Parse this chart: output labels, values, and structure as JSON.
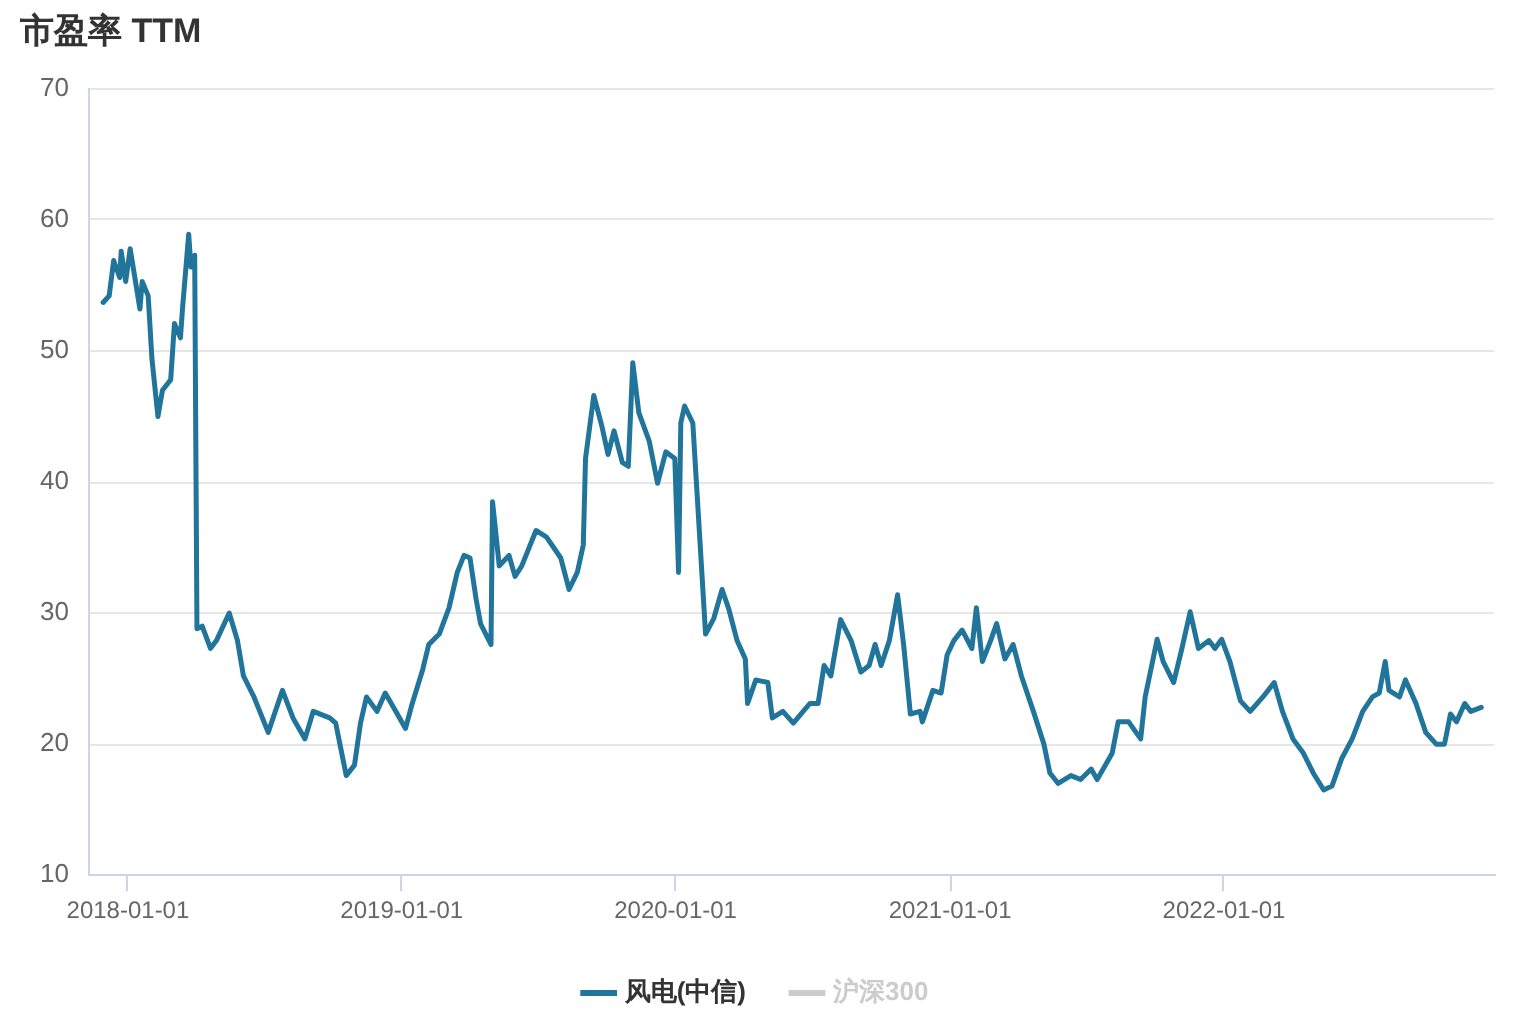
{
  "chart_data": {
    "type": "line",
    "title": "市盈率 TTM",
    "x": [
      "2017-11-29",
      "2017-12-07",
      "2017-12-13",
      "2017-12-21",
      "2017-12-23",
      "2017-12-29",
      "2018-01-04",
      "2018-01-17",
      "2018-01-20",
      "2018-01-28",
      "2018-02-02",
      "2018-02-10",
      "2018-02-16",
      "2018-02-27",
      "2018-03-04",
      "2018-03-12",
      "2018-03-15",
      "2018-03-23",
      "2018-03-26",
      "2018-03-31",
      "2018-04-03",
      "2018-04-10",
      "2018-04-21",
      "2018-04-29",
      "2018-05-16",
      "2018-05-27",
      "2018-06-04",
      "2018-06-18",
      "2018-07-07",
      "2018-07-26",
      "2018-08-09",
      "2018-08-25",
      "2018-09-05",
      "2018-09-27",
      "2018-10-05",
      "2018-10-19",
      "2018-10-30",
      "2018-11-07",
      "2018-11-15",
      "2018-11-29",
      "2018-12-10",
      "2018-12-24",
      "2019-01-06",
      "2019-01-15",
      "2019-01-29",
      "2019-02-06",
      "2019-02-20",
      "2019-03-05",
      "2019-03-16",
      "2019-03-25",
      "2019-04-02",
      "2019-04-10",
      "2019-04-16",
      "2019-04-30",
      "2019-05-02",
      "2019-05-11",
      "2019-05-24",
      "2019-06-01",
      "2019-06-10",
      "2019-06-29",
      "2019-07-13",
      "2019-08-01",
      "2019-08-12",
      "2019-08-23",
      "2019-08-31",
      "2019-09-03",
      "2019-09-14",
      "2019-09-25",
      "2019-10-03",
      "2019-10-11",
      "2019-10-22",
      "2019-10-30",
      "2019-11-05",
      "2019-11-13",
      "2019-11-27",
      "2019-12-08",
      "2019-12-19",
      "2019-12-31",
      "2020-01-05",
      "2020-01-08",
      "2020-01-13",
      "2020-01-24",
      "2020-02-10",
      "2020-02-21",
      "2020-03-03",
      "2020-03-12",
      "2020-03-23",
      "2020-04-03",
      "2020-04-06",
      "2020-04-17",
      "2020-05-03",
      "2020-05-09",
      "2020-05-23",
      "2020-06-06",
      "2020-06-28",
      "2020-07-09",
      "2020-07-17",
      "2020-07-26",
      "2020-08-08",
      "2020-08-22",
      "2020-09-04",
      "2020-09-15",
      "2020-09-23",
      "2020-10-01",
      "2020-10-12",
      "2020-10-23",
      "2020-10-31",
      "2020-11-09",
      "2020-11-22",
      "2020-11-25",
      "2020-12-09",
      "2020-12-20",
      "2020-12-28",
      "2021-01-06",
      "2021-01-17",
      "2021-01-30",
      "2021-02-05",
      "2021-02-13",
      "2021-02-24",
      "2021-03-04",
      "2021-03-15",
      "2021-03-26",
      "2021-04-06",
      "2021-04-22",
      "2021-05-06",
      "2021-05-14",
      "2021-05-25",
      "2021-06-11",
      "2021-06-24",
      "2021-07-08",
      "2021-07-16",
      "2021-08-05",
      "2021-08-13",
      "2021-08-27",
      "2021-09-07",
      "2021-09-12",
      "2021-09-18",
      "2021-10-04",
      "2021-10-12",
      "2021-10-26",
      "2021-11-06",
      "2021-11-17",
      "2021-11-28",
      "2021-12-12",
      "2021-12-20",
      "2021-12-29",
      "2022-01-09",
      "2022-01-23",
      "2022-02-05",
      "2022-02-22",
      "2022-03-09",
      "2022-03-20",
      "2022-04-03",
      "2022-04-17",
      "2022-04-30",
      "2022-05-14",
      "2022-05-25",
      "2022-06-07",
      "2022-06-21",
      "2022-07-05",
      "2022-07-18",
      "2022-07-27",
      "2022-08-04",
      "2022-08-09",
      "2022-08-23",
      "2022-08-31",
      "2022-09-14",
      "2022-09-27",
      "2022-10-11",
      "2022-10-22",
      "2022-10-30",
      "2022-11-07",
      "2022-11-18",
      "2022-11-26",
      "2022-12-10"
    ],
    "series": [
      {
        "name": "风电(中信)",
        "color": "#21759b",
        "values": [
          53.7,
          54.2,
          56.9,
          55.6,
          57.6,
          55.3,
          57.8,
          53.2,
          55.3,
          54.2,
          49.4,
          45.0,
          47.0,
          47.8,
          52.1,
          51.0,
          53.4,
          58.9,
          56.4,
          57.3,
          28.8,
          29.0,
          27.3,
          27.9,
          30.0,
          27.9,
          25.2,
          23.6,
          20.9,
          24.1,
          22.0,
          20.4,
          22.5,
          22.0,
          21.6,
          17.6,
          18.4,
          21.6,
          23.6,
          22.5,
          23.9,
          22.5,
          21.2,
          23.1,
          25.7,
          27.6,
          28.4,
          30.4,
          33.1,
          34.4,
          34.2,
          31.1,
          29.2,
          27.6,
          38.5,
          33.6,
          34.4,
          32.8,
          33.6,
          36.3,
          35.8,
          34.2,
          31.8,
          33.1,
          35.2,
          41.8,
          46.6,
          44.2,
          42.1,
          43.9,
          41.5,
          41.2,
          49.1,
          45.3,
          43.1,
          39.9,
          42.3,
          41.8,
          33.1,
          44.5,
          45.8,
          44.5,
          28.4,
          29.6,
          31.8,
          30.3,
          27.9,
          26.5,
          23.1,
          24.9,
          24.7,
          22.0,
          22.5,
          21.6,
          23.1,
          23.1,
          26.0,
          25.2,
          29.5,
          27.9,
          25.5,
          26.0,
          27.6,
          26.0,
          27.9,
          31.4,
          27.6,
          22.3,
          22.5,
          21.7,
          24.1,
          23.9,
          26.8,
          27.9,
          28.7,
          27.3,
          30.4,
          26.3,
          27.9,
          29.2,
          26.5,
          27.6,
          25.2,
          22.5,
          20.0,
          17.8,
          17.0,
          17.6,
          17.3,
          18.1,
          17.3,
          19.3,
          21.7,
          21.7,
          20.8,
          20.4,
          23.6,
          28.0,
          26.3,
          24.7,
          27.3,
          30.1,
          27.3,
          27.9,
          27.3,
          28.0,
          26.3,
          23.3,
          22.5,
          23.6,
          24.7,
          22.5,
          20.4,
          19.3,
          17.8,
          16.5,
          16.8,
          18.9,
          20.4,
          22.5,
          23.6,
          23.9,
          26.3,
          24.1,
          23.6,
          24.9,
          23.1,
          20.9,
          20.0,
          20.0,
          22.3,
          21.7,
          23.1,
          22.5,
          22.8
        ]
      },
      {
        "name": "沪深300",
        "color": "#cccccc",
        "values": [
          null,
          null,
          null,
          null,
          null,
          null,
          null,
          null,
          null,
          null,
          null,
          null,
          null,
          null,
          null,
          null,
          null,
          null,
          null,
          null,
          null,
          null,
          null,
          null,
          null,
          null,
          null,
          null,
          null,
          null,
          null,
          null,
          null,
          null,
          null,
          null,
          null,
          null,
          null,
          null,
          null,
          null,
          null,
          null,
          null,
          null,
          null,
          null,
          null,
          null,
          null,
          null,
          null,
          null,
          null,
          null,
          null,
          null,
          null,
          null,
          null,
          null,
          null,
          null,
          null,
          null,
          null,
          null,
          null,
          null,
          null,
          null,
          null,
          null,
          null,
          null,
          null,
          null,
          null,
          null,
          null,
          null,
          null,
          null,
          null,
          null,
          null,
          null,
          null,
          null,
          null,
          null,
          null,
          null,
          null,
          null,
          null,
          null,
          null,
          null,
          null,
          null,
          null,
          null,
          null,
          null,
          null,
          null,
          null,
          null,
          null,
          null,
          null,
          null,
          null,
          null,
          null,
          null,
          null,
          null,
          null,
          null,
          null,
          null,
          null,
          null,
          null,
          null,
          null,
          null,
          null,
          null,
          null,
          null,
          null,
          null,
          null,
          null,
          null,
          null,
          null,
          null,
          null,
          null,
          null,
          null,
          null,
          null,
          null,
          null,
          null,
          null,
          null,
          null,
          null,
          null,
          null,
          null,
          null,
          null,
          null,
          null,
          null,
          null,
          null,
          null,
          null,
          null,
          null,
          null,
          null,
          null,
          null,
          null,
          null
        ]
      }
    ],
    "xlim": [
      "2017-11-10",
      "2022-12-27"
    ],
    "xticks": [
      "2018-01-01",
      "2019-01-01",
      "2020-01-01",
      "2021-01-01",
      "2022-01-01"
    ],
    "ylim": [
      10,
      70
    ],
    "yticks": [
      10,
      20,
      30,
      40,
      50,
      60,
      70
    ],
    "grid": "y",
    "legend": "bottom",
    "marker": "none",
    "line_style": "solid"
  }
}
